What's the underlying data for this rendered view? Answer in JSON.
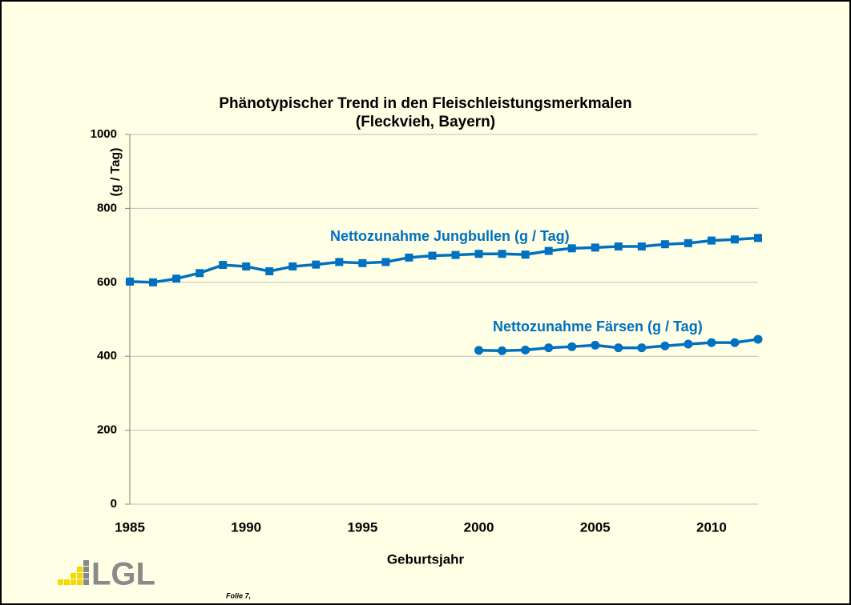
{
  "chart_data": {
    "type": "line",
    "title": "Phänotypischer Trend in den Fleischleistungsmerkmalen",
    "subtitle": "(Fleckvieh, Bayern)",
    "xlabel": "Geburtsjahr",
    "ylabel": "(g / Tag)",
    "x": [
      1985,
      1986,
      1987,
      1988,
      1989,
      1990,
      1991,
      1992,
      1993,
      1994,
      1995,
      1996,
      1997,
      1998,
      1999,
      2000,
      2001,
      2002,
      2003,
      2004,
      2005,
      2006,
      2007,
      2008,
      2009,
      2010,
      2011,
      2012
    ],
    "series": [
      {
        "name": "Nettozunahme Jungbullen (g / Tag)",
        "color": "#0070c0",
        "marker": "square",
        "values": [
          602,
          600,
          610,
          625,
          647,
          643,
          630,
          643,
          648,
          655,
          652,
          655,
          667,
          672,
          674,
          677,
          677,
          675,
          685,
          692,
          694,
          697,
          697,
          703,
          706,
          713,
          716,
          720
        ]
      },
      {
        "name": "Nettozunahme Färsen (g / Tag)",
        "color": "#0070c0",
        "marker": "circle",
        "values": [
          null,
          null,
          null,
          null,
          null,
          null,
          null,
          null,
          null,
          null,
          null,
          null,
          null,
          null,
          null,
          416,
          415,
          417,
          423,
          426,
          430,
          423,
          423,
          428,
          433,
          437,
          437,
          446
        ]
      }
    ],
    "xlim": [
      1985,
      2012
    ],
    "xticks": [
      1985,
      1990,
      1995,
      2000,
      2005,
      2010
    ],
    "ylim": [
      0,
      1000
    ],
    "yticks": [
      0,
      200,
      400,
      600,
      800,
      1000
    ],
    "grid": true
  },
  "footer": {
    "logo": "LGL",
    "slide": "Folie 7,"
  }
}
